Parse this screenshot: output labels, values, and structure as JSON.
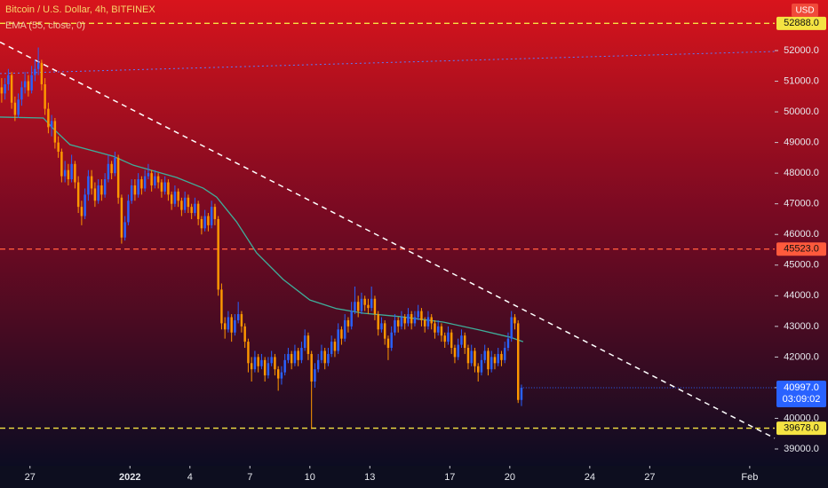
{
  "chart_data": {
    "type": "candlestick",
    "title": "Bitcoin / U.S. Dollar, 4h, BITFINEX",
    "indicator_label": "EMA (55, close, 0)",
    "currency": "USD",
    "up_color": "#2962ff",
    "down_color": "#ff9800",
    "xlim": [
      0,
      232.5
    ],
    "ylim": [
      38450,
      53650
    ],
    "xticks": [
      {
        "value": 9,
        "label": "27"
      },
      {
        "value": 39,
        "label": "2022"
      },
      {
        "value": 57,
        "label": "4"
      },
      {
        "value": 75,
        "label": "7"
      },
      {
        "value": 93,
        "label": "10"
      },
      {
        "value": 111,
        "label": "13"
      },
      {
        "value": 135,
        "label": "17"
      },
      {
        "value": 153,
        "label": "20"
      },
      {
        "value": 177,
        "label": "24"
      },
      {
        "value": 195,
        "label": "27"
      },
      {
        "value": 225,
        "label": "Feb"
      }
    ],
    "yticks": [
      {
        "value": 39000,
        "label": "39000.0"
      },
      {
        "value": 40000,
        "label": "40000.0"
      },
      {
        "value": 41000,
        "label": "41000.0"
      },
      {
        "value": 42000,
        "label": "42000.0"
      },
      {
        "value": 43000,
        "label": "43000.0"
      },
      {
        "value": 44000,
        "label": "44000.0"
      },
      {
        "value": 45000,
        "label": "45000.0"
      },
      {
        "value": 46000,
        "label": "46000.0"
      },
      {
        "value": 47000,
        "label": "47000.0"
      },
      {
        "value": 48000,
        "label": "48000.0"
      },
      {
        "value": 49000,
        "label": "49000.0"
      },
      {
        "value": 50000,
        "label": "50000.0"
      },
      {
        "value": 51000,
        "label": "51000.0"
      },
      {
        "value": 52000,
        "label": "52000.0"
      }
    ],
    "levels": [
      {
        "value": 52888,
        "label": "52888.0",
        "color": "#f5e342"
      },
      {
        "value": 45523,
        "label": "45523.0",
        "color": "#ff5a3c"
      },
      {
        "value": 39678,
        "label": "39678.0",
        "color": "#f5e342"
      }
    ],
    "last_price": {
      "value": 40997,
      "label": "40997.0",
      "countdown": "03:09:02",
      "color": "#2962ff"
    },
    "trendlines": [
      {
        "color": "#ffffff",
        "x": [
          0,
          232.5
        ],
        "values": [
          52276,
          39350
        ]
      },
      {
        "color": "#5b7bff",
        "x": [
          0,
          232.5
        ],
        "values": [
          51250,
          51970
        ]
      }
    ],
    "ema": {
      "color": "#3fae9a",
      "x": [
        0,
        13,
        16,
        21,
        34,
        40,
        53,
        61,
        65,
        71,
        77,
        85,
        93,
        101,
        109,
        120,
        133,
        144,
        153,
        157
      ],
      "values": [
        49830,
        49800,
        49450,
        48930,
        48550,
        48260,
        47860,
        47510,
        47220,
        46410,
        45400,
        44530,
        43860,
        43580,
        43430,
        43320,
        43140,
        42880,
        42650,
        42500
      ]
    },
    "candles": [
      [
        50800,
        51100,
        50300,
        50600
      ],
      [
        50600,
        51100,
        50400,
        50900
      ],
      [
        50900,
        51400,
        50700,
        51200
      ],
      [
        51200,
        51300,
        50100,
        50300
      ],
      [
        50300,
        50500,
        49700,
        49900
      ],
      [
        49900,
        50600,
        49800,
        50400
      ],
      [
        50400,
        51000,
        50200,
        50800
      ],
      [
        50800,
        51300,
        50600,
        51000
      ],
      [
        51000,
        51200,
        50500,
        50700
      ],
      [
        50700,
        51500,
        50600,
        51200
      ],
      [
        51200,
        51700,
        51000,
        51400
      ],
      [
        51400,
        52100,
        51200,
        51600
      ],
      [
        51600,
        51700,
        50700,
        50900
      ],
      [
        50900,
        51100,
        49900,
        50100
      ],
      [
        50100,
        50300,
        49300,
        49500
      ],
      [
        49500,
        49900,
        49200,
        49700
      ],
      [
        49700,
        49800,
        48800,
        49000
      ],
      [
        49000,
        49200,
        48500,
        48700
      ],
      [
        48700,
        48800,
        47700,
        47900
      ],
      [
        47900,
        48400,
        47700,
        48100
      ],
      [
        48100,
        48300,
        47600,
        47800
      ],
      [
        47800,
        48600,
        47700,
        48300
      ],
      [
        48300,
        48400,
        47500,
        47700
      ],
      [
        47700,
        47900,
        46700,
        46900
      ],
      [
        46900,
        47100,
        46300,
        46600
      ],
      [
        46600,
        47500,
        46500,
        47300
      ],
      [
        47300,
        48100,
        47100,
        47900
      ],
      [
        47900,
        48100,
        47300,
        47500
      ],
      [
        47500,
        47700,
        46900,
        47100
      ],
      [
        47100,
        47800,
        47000,
        47600
      ],
      [
        47600,
        47800,
        47100,
        47300
      ],
      [
        47300,
        48000,
        47200,
        47800
      ],
      [
        47800,
        48600,
        47700,
        48300
      ],
      [
        48300,
        48400,
        47800,
        48000
      ],
      [
        48000,
        48700,
        47900,
        48500
      ],
      [
        48500,
        48600,
        47000,
        47200
      ],
      [
        47200,
        47300,
        45700,
        45900
      ],
      [
        45900,
        46600,
        45800,
        46400
      ],
      [
        46400,
        47300,
        46300,
        47100
      ],
      [
        47100,
        47800,
        47000,
        47600
      ],
      [
        47600,
        47800,
        47100,
        47300
      ],
      [
        47300,
        48000,
        47200,
        47800
      ],
      [
        47800,
        47900,
        47300,
        47500
      ],
      [
        47500,
        48100,
        47400,
        47900
      ],
      [
        47900,
        48300,
        47800,
        48000
      ],
      [
        48000,
        48100,
        47400,
        47600
      ],
      [
        47600,
        48100,
        47500,
        47900
      ],
      [
        47900,
        48000,
        47500,
        47700
      ],
      [
        47700,
        47800,
        47200,
        47400
      ],
      [
        47400,
        47900,
        47300,
        47700
      ],
      [
        47700,
        47800,
        47100,
        47300
      ],
      [
        47300,
        47400,
        46800,
        47000
      ],
      [
        47000,
        47600,
        46900,
        47400
      ],
      [
        47400,
        47500,
        46900,
        47100
      ],
      [
        47100,
        47200,
        46600,
        46800
      ],
      [
        46800,
        47400,
        46700,
        47200
      ],
      [
        47200,
        47300,
        46700,
        46900
      ],
      [
        46900,
        47000,
        46500,
        46700
      ],
      [
        46700,
        47200,
        46600,
        47000
      ],
      [
        47000,
        47100,
        46300,
        46500
      ],
      [
        46500,
        46600,
        46000,
        46200
      ],
      [
        46200,
        46800,
        46100,
        46600
      ],
      [
        46600,
        46700,
        46100,
        46300
      ],
      [
        46300,
        47100,
        46200,
        46900
      ],
      [
        46900,
        47000,
        46300,
        46500
      ],
      [
        46500,
        46600,
        44000,
        44200
      ],
      [
        44200,
        44400,
        42900,
        43100
      ],
      [
        43100,
        43300,
        42600,
        42900
      ],
      [
        42900,
        43500,
        42800,
        43300
      ],
      [
        43300,
        43400,
        42500,
        42800
      ],
      [
        42800,
        43400,
        42700,
        43200
      ],
      [
        43200,
        43800,
        43100,
        43400
      ],
      [
        43400,
        43500,
        42800,
        43000
      ],
      [
        43000,
        43100,
        42300,
        42500
      ],
      [
        42500,
        42600,
        41500,
        41800
      ],
      [
        41800,
        42000,
        41200,
        41600
      ],
      [
        41600,
        42200,
        41500,
        42000
      ],
      [
        42000,
        42100,
        41500,
        41700
      ],
      [
        41700,
        42100,
        41600,
        41900
      ],
      [
        41900,
        42000,
        41200,
        41400
      ],
      [
        41400,
        42000,
        41300,
        41800
      ],
      [
        41800,
        42200,
        41700,
        42000
      ],
      [
        42000,
        42100,
        41400,
        41600
      ],
      [
        41600,
        41700,
        40900,
        41300
      ],
      [
        41300,
        41700,
        41100,
        41500
      ],
      [
        41500,
        42100,
        41400,
        41900
      ],
      [
        41900,
        42300,
        41800,
        42100
      ],
      [
        42100,
        42200,
        41600,
        41800
      ],
      [
        41800,
        42400,
        41700,
        42200
      ],
      [
        42200,
        42300,
        41700,
        41900
      ],
      [
        41900,
        42500,
        41800,
        42300
      ],
      [
        42300,
        42900,
        42200,
        42700
      ],
      [
        42700,
        42800,
        41900,
        42100
      ],
      [
        42100,
        42200,
        39650,
        41200
      ],
      [
        41200,
        41800,
        41000,
        41600
      ],
      [
        41600,
        42100,
        41500,
        41900
      ],
      [
        41900,
        42400,
        41800,
        42200
      ],
      [
        42200,
        42300,
        41600,
        41800
      ],
      [
        41800,
        42300,
        41700,
        42100
      ],
      [
        42100,
        42700,
        42000,
        42500
      ],
      [
        42500,
        42600,
        42000,
        42200
      ],
      [
        42200,
        43100,
        42100,
        42900
      ],
      [
        42900,
        43000,
        42400,
        42600
      ],
      [
        42600,
        43400,
        42500,
        43200
      ],
      [
        43200,
        43300,
        42800,
        43000
      ],
      [
        43000,
        43800,
        42900,
        43500
      ],
      [
        43500,
        44300,
        43400,
        43800
      ],
      [
        43800,
        44000,
        43300,
        43500
      ],
      [
        43500,
        44100,
        43400,
        43900
      ],
      [
        43900,
        44000,
        43500,
        43700
      ],
      [
        43700,
        43900,
        43400,
        43600
      ],
      [
        43600,
        44300,
        43500,
        43900
      ],
      [
        43900,
        44000,
        43200,
        43400
      ],
      [
        43400,
        43500,
        42700,
        42900
      ],
      [
        42900,
        43300,
        42800,
        43100
      ],
      [
        43100,
        43200,
        42400,
        42600
      ],
      [
        42600,
        42700,
        41900,
        42300
      ],
      [
        42300,
        43000,
        42200,
        42800
      ],
      [
        42800,
        43400,
        42700,
        43200
      ],
      [
        43200,
        43300,
        42800,
        43000
      ],
      [
        43000,
        43500,
        42900,
        43300
      ],
      [
        43300,
        43400,
        42900,
        43100
      ],
      [
        43100,
        43600,
        43000,
        43400
      ],
      [
        43400,
        43500,
        42900,
        43100
      ],
      [
        43100,
        43500,
        43000,
        43300
      ],
      [
        43300,
        43700,
        43200,
        43500
      ],
      [
        43500,
        43600,
        43000,
        43200
      ],
      [
        43200,
        43300,
        42800,
        43000
      ],
      [
        43000,
        43500,
        42900,
        43300
      ],
      [
        43300,
        43400,
        42900,
        43100
      ],
      [
        43100,
        43200,
        42600,
        42800
      ],
      [
        42800,
        43200,
        42700,
        43000
      ],
      [
        43000,
        43100,
        42500,
        42700
      ],
      [
        42700,
        42800,
        42300,
        42500
      ],
      [
        42500,
        43000,
        42400,
        42800
      ],
      [
        42800,
        42900,
        42100,
        42300
      ],
      [
        42300,
        42400,
        41800,
        42000
      ],
      [
        42000,
        42600,
        41900,
        42400
      ],
      [
        42400,
        42900,
        42300,
        42700
      ],
      [
        42700,
        42800,
        42100,
        42300
      ],
      [
        42300,
        42400,
        41600,
        41800
      ],
      [
        41800,
        42400,
        41700,
        42200
      ],
      [
        42200,
        42300,
        41500,
        41700
      ],
      [
        41700,
        41800,
        41200,
        41500
      ],
      [
        41500,
        42100,
        41400,
        41900
      ],
      [
        41900,
        42400,
        41800,
        42200
      ],
      [
        42200,
        42300,
        41400,
        41600
      ],
      [
        41600,
        42200,
        41500,
        42000
      ],
      [
        42000,
        42100,
        41600,
        41800
      ],
      [
        41800,
        42300,
        41700,
        42100
      ],
      [
        42100,
        42200,
        41700,
        41900
      ],
      [
        41900,
        42500,
        41800,
        42300
      ],
      [
        42300,
        42800,
        42200,
        42600
      ],
      [
        42600,
        43500,
        42500,
        43300
      ],
      [
        43300,
        43400,
        42900,
        43100
      ],
      [
        43100,
        43200,
        40500,
        40600
      ],
      [
        40600,
        41100,
        40400,
        40997
      ]
    ]
  }
}
